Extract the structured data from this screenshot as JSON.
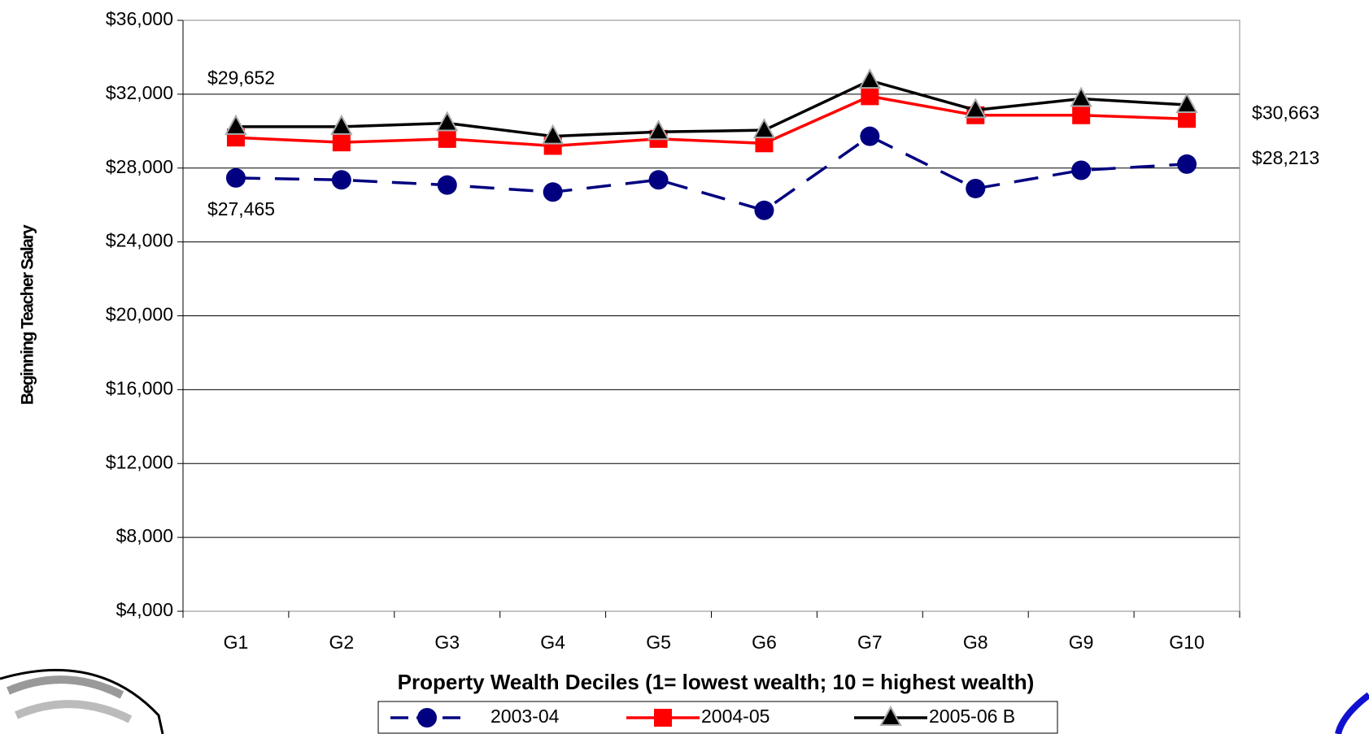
{
  "chart_data": {
    "type": "line",
    "x_label": "Property Wealth Deciles (1= lowest wealth; 10 = highest wealth)",
    "y_label": "Beginning Teacher Salary",
    "categories": [
      "G1",
      "G2",
      "G3",
      "G4",
      "G5",
      "G6",
      "G7",
      "G8",
      "G9",
      "G10"
    ],
    "series": [
      {
        "name": "2003-04",
        "color": "#000080",
        "values": [
          27465,
          27360,
          27080,
          26700,
          27360,
          25710,
          29720,
          26890,
          27880,
          28213
        ],
        "value_labels": [
          "$27,465",
          null,
          null,
          null,
          null,
          null,
          null,
          null,
          null,
          "$28,213"
        ]
      },
      {
        "name": "2004-05",
        "color": "#ff0000",
        "values": [
          29652,
          29390,
          29580,
          29200,
          29580,
          29340,
          31890,
          30860,
          30860,
          30663
        ],
        "value_labels": [
          "$29,652",
          null,
          null,
          null,
          null,
          null,
          null,
          null,
          null,
          "$30,663"
        ]
      },
      {
        "name": "2005-06 B",
        "color": "#000000",
        "values": [
          30240,
          30240,
          30430,
          29720,
          29960,
          30050,
          32740,
          31140,
          31750,
          31420
        ]
      }
    ],
    "ylim": [
      4000,
      36000
    ],
    "yticks": [
      {
        "value": 4000,
        "label": "$4,000"
      },
      {
        "value": 8000,
        "label": "$8,000"
      },
      {
        "value": 12000,
        "label": "$12,000"
      },
      {
        "value": 16000,
        "label": "$16,000"
      },
      {
        "value": 20000,
        "label": "$20,000"
      },
      {
        "value": 24000,
        "label": "$24,000"
      },
      {
        "value": 28000,
        "label": "$28,000"
      },
      {
        "value": 32000,
        "label": "$32,000"
      },
      {
        "value": 36000,
        "label": "$36,000"
      }
    ],
    "grid": true,
    "legend": "bottom"
  }
}
